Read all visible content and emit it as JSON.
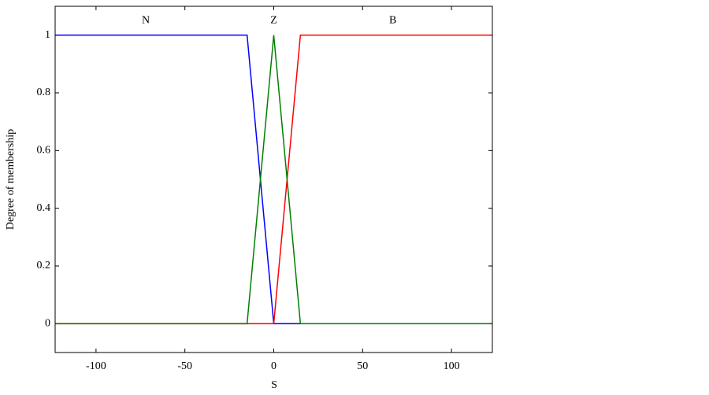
{
  "chart_data": {
    "type": "line",
    "xlabel": "S",
    "ylabel": "Degree of membership",
    "xlim": [
      -123,
      123
    ],
    "ylim": [
      -0.1,
      1.1
    ],
    "xticks": [
      -100,
      -50,
      0,
      50,
      100
    ],
    "yticks": [
      0,
      0.2,
      0.4,
      0.6,
      0.8,
      1
    ],
    "grid": false,
    "series": [
      {
        "name": "N",
        "color": "#0000ff",
        "x": [
          -123,
          -15,
          0,
          15
        ],
        "values": [
          1,
          1,
          0,
          0
        ]
      },
      {
        "name": "B",
        "color": "#ff0000",
        "x": [
          -123,
          0,
          15,
          123
        ],
        "values": [
          0,
          0,
          1,
          1
        ]
      },
      {
        "name": "Z",
        "color": "#008000",
        "x": [
          -123,
          -15,
          0,
          15,
          123
        ],
        "values": [
          0,
          0,
          1,
          0,
          0
        ]
      }
    ],
    "annotations": [
      {
        "text": "N",
        "x": -72,
        "y": 1.05
      },
      {
        "text": "Z",
        "x": 0,
        "y": 1.05
      },
      {
        "text": "B",
        "x": 67,
        "y": 1.05
      }
    ]
  }
}
